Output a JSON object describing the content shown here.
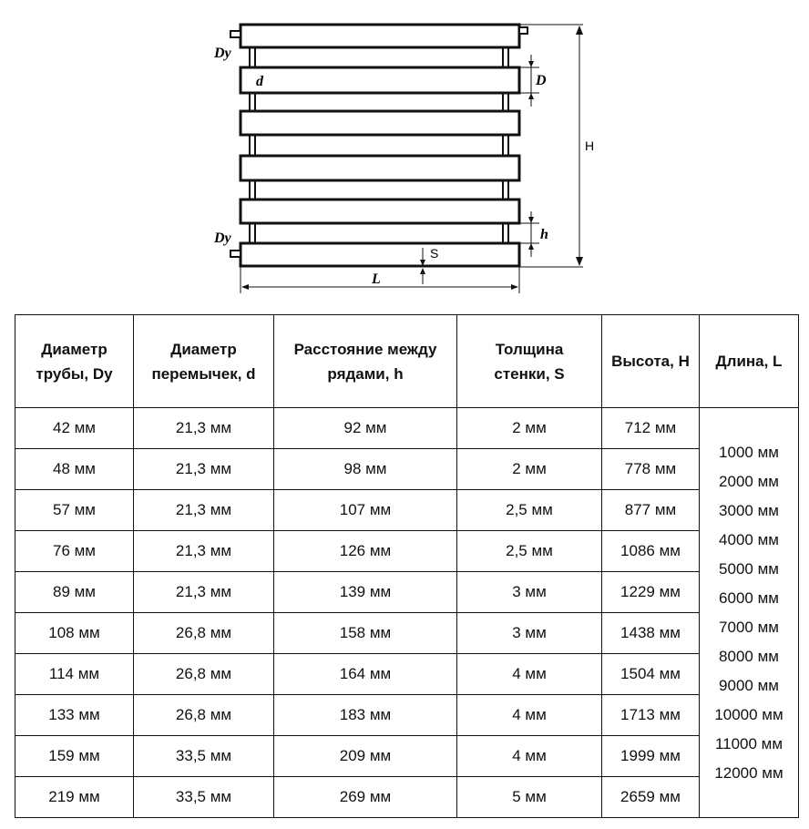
{
  "diagram": {
    "labels": {
      "dy_top": "Dy",
      "dy_bottom": "Dy",
      "d": "d",
      "D": "D",
      "H": "H",
      "h": "h",
      "S": "S",
      "L": "L"
    }
  },
  "table": {
    "headers": [
      [
        "Диаметр",
        "трубы, Dy"
      ],
      [
        "Диаметр",
        "перемычек, d"
      ],
      [
        "Расстояние между",
        "рядами, h"
      ],
      [
        "Толщина",
        "стенки, S"
      ],
      [
        "Высота, H"
      ],
      [
        "Длина, L"
      ]
    ],
    "rows": [
      [
        "42 мм",
        "21,3 мм",
        "92 мм",
        "2 мм",
        "712 мм"
      ],
      [
        "48 мм",
        "21,3 мм",
        "98 мм",
        "2 мм",
        "778 мм"
      ],
      [
        "57 мм",
        "21,3 мм",
        "107 мм",
        "2,5 мм",
        "877 мм"
      ],
      [
        "76 мм",
        "21,3 мм",
        "126 мм",
        "2,5 мм",
        "1086 мм"
      ],
      [
        "89 мм",
        "21,3 мм",
        "139 мм",
        "3 мм",
        "1229 мм"
      ],
      [
        "108 мм",
        "26,8 мм",
        "158 мм",
        "3 мм",
        "1438 мм"
      ],
      [
        "114 мм",
        "26,8 мм",
        "164 мм",
        "4 мм",
        "1504 мм"
      ],
      [
        "133 мм",
        "26,8 мм",
        "183 мм",
        "4 мм",
        "1713 мм"
      ],
      [
        "159 мм",
        "33,5 мм",
        "209 мм",
        "4 мм",
        "1999 мм"
      ],
      [
        "219 мм",
        "33,5 мм",
        "269 мм",
        "5 мм",
        "2659 мм"
      ]
    ],
    "lengths": [
      "1000 мм",
      "2000 мм",
      "3000 мм",
      "4000 мм",
      "5000 мм",
      "6000 мм",
      "7000 мм",
      "8000 мм",
      "9000 мм",
      "10000 мм",
      "11000 мм",
      "12000 мм"
    ]
  }
}
